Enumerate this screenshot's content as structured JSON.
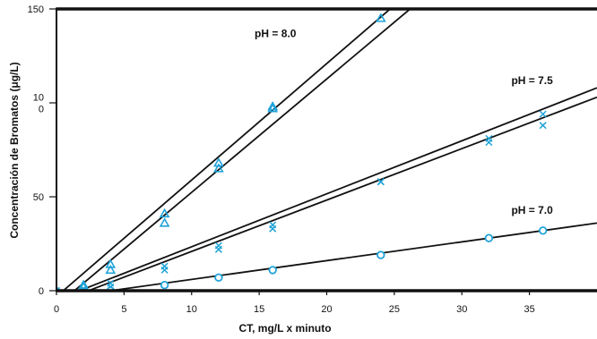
{
  "chart_data": {
    "type": "scatter",
    "xlabel": "CT, mg/L x minuto",
    "ylabel": "Concentración de Bromatos (μg/L)",
    "xlim": [
      0,
      40
    ],
    "ylim": [
      0,
      150
    ],
    "x_ticks": [
      "0",
      "5",
      "10",
      "15",
      "20",
      "25",
      "30",
      "35"
    ],
    "y_ticks": [
      {
        "value": 0,
        "lines": [
          "0"
        ]
      },
      {
        "value": 50,
        "lines": [
          "50"
        ]
      },
      {
        "value": 100,
        "lines": [
          "10",
          "0"
        ]
      },
      {
        "value": 150,
        "lines": [
          "150"
        ]
      }
    ],
    "grid": false,
    "annotations": [
      {
        "text": "pH = 8.0",
        "x": 16.2,
        "y": 135
      },
      {
        "text": "pH = 7.5",
        "x": 35.2,
        "y": 110
      },
      {
        "text": "pH = 7.0",
        "x": 35.2,
        "y": 41
      }
    ],
    "colors": {
      "marker": "#1fa3d9",
      "line": "#111111",
      "axis": "#111111"
    },
    "series": [
      {
        "marker": "triangle",
        "x": [
          0,
          2,
          4,
          8,
          12,
          16,
          24
        ],
        "y": [
          0,
          3,
          14,
          41,
          68,
          98,
          145
        ]
      },
      {
        "marker": "triangle",
        "x": [
          0,
          2,
          4,
          8,
          12,
          16,
          24
        ],
        "y": [
          0,
          2,
          11,
          36,
          65,
          97,
          155
        ]
      },
      {
        "marker": "x",
        "x": [
          0,
          2,
          4,
          8,
          12,
          16,
          24,
          32,
          36
        ],
        "y": [
          0,
          1,
          4,
          13,
          24,
          35,
          58,
          81,
          94
        ]
      },
      {
        "marker": "x",
        "x": [
          0,
          2,
          4,
          8,
          12,
          16,
          24,
          32,
          36
        ],
        "y": [
          0,
          0,
          2,
          11,
          22,
          33,
          58,
          79,
          88
        ]
      },
      {
        "marker": "circle",
        "x": [
          0,
          2,
          4,
          8,
          12,
          16,
          24,
          32,
          36
        ],
        "y": [
          -1,
          -1,
          0,
          3,
          7,
          11,
          19,
          28,
          32
        ]
      }
    ],
    "fit_lines": [
      {
        "x": [
          0.5,
          25.5
        ],
        "y": [
          0,
          155
        ]
      },
      {
        "x": [
          1.0,
          27.0
        ],
        "y": [
          -2,
          155
        ]
      },
      {
        "x": [
          1.0,
          40.0
        ],
        "y": [
          -2,
          108
        ]
      },
      {
        "x": [
          2.0,
          40.0
        ],
        "y": [
          -1,
          103
        ]
      },
      {
        "x": [
          2.0,
          40.0
        ],
        "y": [
          -2,
          36
        ]
      }
    ]
  }
}
